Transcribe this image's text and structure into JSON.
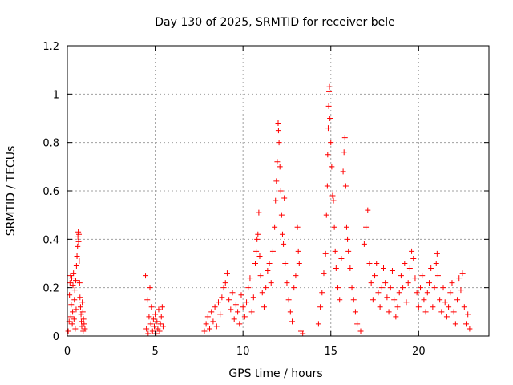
{
  "chart_data": {
    "type": "scatter",
    "title": "Day 130 of 2025, SRMTID for receiver bele",
    "xlabel": "GPS time / hours",
    "ylabel": "SRMTID / TECUs",
    "xlim": [
      0,
      24
    ],
    "ylim": [
      0,
      1.2
    ],
    "x_ticks": [
      0,
      5,
      10,
      15,
      20
    ],
    "x_tick_labels": [
      "0",
      "5",
      "10",
      "15",
      "20"
    ],
    "y_ticks": [
      0,
      0.2,
      0.4,
      0.6,
      0.8,
      1.0,
      1.2
    ],
    "y_tick_labels": [
      "0",
      "0.2",
      "0.4",
      "0.6",
      "0.8",
      "1",
      "1.2"
    ],
    "grid": true,
    "marker": "plus",
    "color": "#ff0000",
    "series": [
      {
        "name": "SRMTID",
        "points": [
          [
            0.05,
            0.02
          ],
          [
            0.1,
            0.06
          ],
          [
            0.12,
            0.17
          ],
          [
            0.15,
            0.22
          ],
          [
            0.18,
            0.25
          ],
          [
            0.2,
            0.08
          ],
          [
            0.22,
            0.13
          ],
          [
            0.25,
            0.24
          ],
          [
            0.28,
            0.05
          ],
          [
            0.3,
            0.1
          ],
          [
            0.32,
            0.21
          ],
          [
            0.35,
            0.26
          ],
          [
            0.38,
            0.07
          ],
          [
            0.4,
            0.15
          ],
          [
            0.42,
            0.19
          ],
          [
            0.45,
            0.03
          ],
          [
            0.48,
            0.23
          ],
          [
            0.5,
            0.11
          ],
          [
            0.52,
            0.29
          ],
          [
            0.55,
            0.33
          ],
          [
            0.58,
            0.37
          ],
          [
            0.6,
            0.41
          ],
          [
            0.62,
            0.43
          ],
          [
            0.64,
            0.39
          ],
          [
            0.66,
            0.42
          ],
          [
            0.68,
            0.31
          ],
          [
            0.7,
            0.22
          ],
          [
            0.72,
            0.16
          ],
          [
            0.75,
            0.12
          ],
          [
            0.78,
            0.09
          ],
          [
            0.8,
            0.06
          ],
          [
            0.82,
            0.04
          ],
          [
            0.85,
            0.14
          ],
          [
            0.88,
            0.1
          ],
          [
            0.9,
            0.02
          ],
          [
            0.92,
            0.07
          ],
          [
            0.95,
            0.05
          ],
          [
            1.0,
            0.03
          ],
          [
            4.45,
            0.25
          ],
          [
            4.5,
            0.03
          ],
          [
            4.55,
            0.15
          ],
          [
            4.6,
            0.01
          ],
          [
            4.65,
            0.08
          ],
          [
            4.7,
            0.2
          ],
          [
            4.75,
            0.05
          ],
          [
            4.8,
            0.12
          ],
          [
            4.85,
            0.02
          ],
          [
            4.9,
            0.07
          ],
          [
            4.95,
            0.04
          ],
          [
            5.0,
            0.09
          ],
          [
            5.05,
            0.01
          ],
          [
            5.1,
            0.06
          ],
          [
            5.15,
            0.03
          ],
          [
            5.2,
            0.11
          ],
          [
            5.25,
            0.02
          ],
          [
            5.3,
            0.05
          ],
          [
            5.35,
            0.08
          ],
          [
            5.4,
            0.12
          ],
          [
            5.45,
            0.04
          ],
          [
            7.8,
            0.02
          ],
          [
            7.9,
            0.05
          ],
          [
            8.0,
            0.08
          ],
          [
            8.1,
            0.03
          ],
          [
            8.2,
            0.1
          ],
          [
            8.3,
            0.06
          ],
          [
            8.4,
            0.12
          ],
          [
            8.5,
            0.04
          ],
          [
            8.6,
            0.14
          ],
          [
            8.7,
            0.09
          ],
          [
            8.8,
            0.16
          ],
          [
            8.9,
            0.2
          ],
          [
            9.0,
            0.22
          ],
          [
            9.1,
            0.26
          ],
          [
            9.2,
            0.15
          ],
          [
            9.3,
            0.11
          ],
          [
            9.4,
            0.18
          ],
          [
            9.5,
            0.07
          ],
          [
            9.6,
            0.13
          ],
          [
            9.7,
            0.1
          ],
          [
            9.8,
            0.05
          ],
          [
            9.9,
            0.17
          ],
          [
            10.0,
            0.12
          ],
          [
            10.1,
            0.08
          ],
          [
            10.2,
            0.14
          ],
          [
            10.3,
            0.2
          ],
          [
            10.4,
            0.24
          ],
          [
            10.5,
            0.1
          ],
          [
            10.6,
            0.16
          ],
          [
            10.7,
            0.3
          ],
          [
            10.75,
            0.35
          ],
          [
            10.8,
            0.4
          ],
          [
            10.85,
            0.42
          ],
          [
            10.9,
            0.51
          ],
          [
            10.95,
            0.33
          ],
          [
            11.0,
            0.25
          ],
          [
            11.1,
            0.18
          ],
          [
            11.2,
            0.12
          ],
          [
            11.3,
            0.2
          ],
          [
            11.4,
            0.27
          ],
          [
            11.5,
            0.3
          ],
          [
            11.6,
            0.22
          ],
          [
            11.7,
            0.35
          ],
          [
            11.8,
            0.45
          ],
          [
            11.85,
            0.56
          ],
          [
            11.9,
            0.64
          ],
          [
            11.95,
            0.72
          ],
          [
            12.0,
            0.88
          ],
          [
            12.02,
            0.85
          ],
          [
            12.05,
            0.8
          ],
          [
            12.1,
            0.7
          ],
          [
            12.15,
            0.6
          ],
          [
            12.2,
            0.5
          ],
          [
            12.25,
            0.42
          ],
          [
            12.3,
            0.38
          ],
          [
            12.35,
            0.57
          ],
          [
            12.4,
            0.3
          ],
          [
            12.5,
            0.22
          ],
          [
            12.6,
            0.15
          ],
          [
            12.7,
            0.1
          ],
          [
            12.8,
            0.06
          ],
          [
            12.9,
            0.2
          ],
          [
            13.0,
            0.25
          ],
          [
            13.1,
            0.45
          ],
          [
            13.15,
            0.35
          ],
          [
            13.2,
            0.3
          ],
          [
            13.3,
            0.02
          ],
          [
            13.4,
            0.01
          ],
          [
            14.3,
            0.05
          ],
          [
            14.4,
            0.12
          ],
          [
            14.5,
            0.18
          ],
          [
            14.6,
            0.26
          ],
          [
            14.7,
            0.34
          ],
          [
            14.75,
            0.5
          ],
          [
            14.8,
            0.62
          ],
          [
            14.82,
            0.75
          ],
          [
            14.85,
            0.86
          ],
          [
            14.88,
            0.95
          ],
          [
            14.9,
            1.01
          ],
          [
            14.92,
            1.03
          ],
          [
            14.95,
            0.9
          ],
          [
            15.0,
            0.8
          ],
          [
            15.05,
            0.7
          ],
          [
            15.1,
            0.58
          ],
          [
            15.15,
            0.56
          ],
          [
            15.2,
            0.45
          ],
          [
            15.25,
            0.35
          ],
          [
            15.3,
            0.28
          ],
          [
            15.4,
            0.2
          ],
          [
            15.5,
            0.15
          ],
          [
            15.6,
            0.32
          ],
          [
            15.7,
            0.68
          ],
          [
            15.75,
            0.76
          ],
          [
            15.8,
            0.82
          ],
          [
            15.85,
            0.62
          ],
          [
            15.9,
            0.45
          ],
          [
            15.95,
            0.4
          ],
          [
            16.0,
            0.35
          ],
          [
            16.1,
            0.28
          ],
          [
            16.2,
            0.2
          ],
          [
            16.3,
            0.15
          ],
          [
            16.4,
            0.1
          ],
          [
            16.5,
            0.05
          ],
          [
            16.7,
            0.02
          ],
          [
            16.9,
            0.38
          ],
          [
            17.0,
            0.45
          ],
          [
            17.1,
            0.52
          ],
          [
            17.2,
            0.3
          ],
          [
            17.3,
            0.22
          ],
          [
            17.4,
            0.15
          ],
          [
            17.5,
            0.25
          ],
          [
            17.6,
            0.3
          ],
          [
            17.7,
            0.18
          ],
          [
            17.8,
            0.12
          ],
          [
            17.9,
            0.2
          ],
          [
            18.0,
            0.28
          ],
          [
            18.1,
            0.22
          ],
          [
            18.2,
            0.16
          ],
          [
            18.3,
            0.1
          ],
          [
            18.4,
            0.2
          ],
          [
            18.5,
            0.27
          ],
          [
            18.6,
            0.15
          ],
          [
            18.7,
            0.08
          ],
          [
            18.8,
            0.12
          ],
          [
            18.9,
            0.18
          ],
          [
            19.0,
            0.25
          ],
          [
            19.1,
            0.2
          ],
          [
            19.2,
            0.3
          ],
          [
            19.3,
            0.14
          ],
          [
            19.4,
            0.22
          ],
          [
            19.5,
            0.28
          ],
          [
            19.6,
            0.35
          ],
          [
            19.7,
            0.32
          ],
          [
            19.8,
            0.24
          ],
          [
            19.9,
            0.18
          ],
          [
            20.0,
            0.12
          ],
          [
            20.1,
            0.2
          ],
          [
            20.2,
            0.25
          ],
          [
            20.3,
            0.15
          ],
          [
            20.4,
            0.1
          ],
          [
            20.5,
            0.18
          ],
          [
            20.6,
            0.22
          ],
          [
            20.7,
            0.28
          ],
          [
            20.8,
            0.12
          ],
          [
            20.9,
            0.2
          ],
          [
            21.0,
            0.3
          ],
          [
            21.05,
            0.34
          ],
          [
            21.1,
            0.25
          ],
          [
            21.2,
            0.15
          ],
          [
            21.3,
            0.1
          ],
          [
            21.4,
            0.2
          ],
          [
            21.5,
            0.14
          ],
          [
            21.6,
            0.08
          ],
          [
            21.7,
            0.12
          ],
          [
            21.8,
            0.18
          ],
          [
            21.9,
            0.22
          ],
          [
            22.0,
            0.1
          ],
          [
            22.1,
            0.05
          ],
          [
            22.2,
            0.15
          ],
          [
            22.3,
            0.24
          ],
          [
            22.4,
            0.19
          ],
          [
            22.5,
            0.26
          ],
          [
            22.6,
            0.12
          ],
          [
            22.7,
            0.05
          ],
          [
            22.8,
            0.09
          ],
          [
            22.9,
            0.03
          ]
        ]
      }
    ]
  }
}
